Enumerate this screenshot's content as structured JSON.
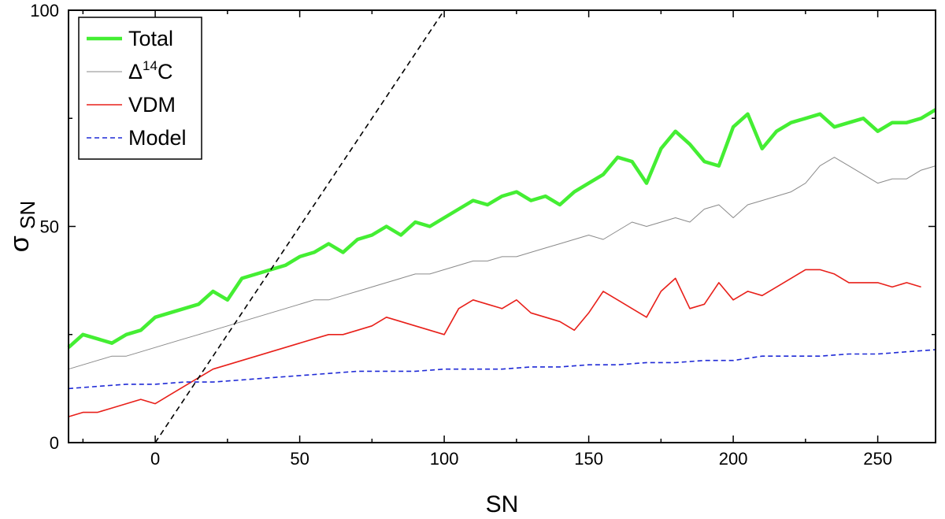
{
  "chart_data": {
    "type": "line",
    "xlabel": "SN",
    "ylabel": "σ",
    "ylabel_sub": "SN",
    "xlim": [
      -30,
      270
    ],
    "ylim": [
      0,
      100
    ],
    "xticks": [
      0,
      50,
      100,
      150,
      200,
      250
    ],
    "yticks": [
      0,
      50,
      100
    ],
    "grid": false,
    "legend_position": "top-left",
    "legend": [
      {
        "label": "Total",
        "super": "",
        "suffix": ""
      },
      {
        "label": "Δ",
        "super": "14",
        "suffix": "C"
      },
      {
        "label": "VDM",
        "super": "",
        "suffix": ""
      },
      {
        "label": "Model",
        "super": "",
        "suffix": ""
      }
    ],
    "reference_line": {
      "x": [
        0,
        100
      ],
      "y": [
        0,
        100
      ],
      "style": "dashed",
      "color": "#000000"
    },
    "series": [
      {
        "name": "Total",
        "color": "#44ee33",
        "style": "solid-thick",
        "x": [
          -30,
          -25,
          -20,
          -15,
          -10,
          -5,
          0,
          5,
          10,
          15,
          20,
          25,
          30,
          35,
          40,
          45,
          50,
          55,
          60,
          65,
          70,
          75,
          80,
          85,
          90,
          95,
          100,
          105,
          110,
          115,
          120,
          125,
          130,
          135,
          140,
          145,
          150,
          155,
          160,
          165,
          170,
          175,
          180,
          185,
          190,
          195,
          200,
          205,
          210,
          215,
          220,
          225,
          230,
          235,
          240,
          245,
          250,
          255,
          260,
          265,
          270
        ],
        "values": [
          22,
          25,
          24,
          23,
          25,
          26,
          29,
          30,
          31,
          32,
          35,
          33,
          38,
          39,
          40,
          41,
          43,
          44,
          46,
          44,
          47,
          48,
          50,
          48,
          51,
          50,
          52,
          54,
          56,
          55,
          57,
          58,
          56,
          57,
          55,
          58,
          60,
          62,
          66,
          65,
          60,
          68,
          72,
          69,
          65,
          64,
          73,
          76,
          68,
          72,
          74,
          75,
          76,
          73,
          74,
          75,
          72,
          74,
          74,
          75,
          77
        ]
      },
      {
        "name": "Δ14C",
        "color": "#8a8a8a",
        "style": "solid-thin",
        "x": [
          -30,
          -25,
          -20,
          -15,
          -10,
          -5,
          0,
          5,
          10,
          15,
          20,
          25,
          30,
          35,
          40,
          45,
          50,
          55,
          60,
          65,
          70,
          75,
          80,
          85,
          90,
          95,
          100,
          105,
          110,
          115,
          120,
          125,
          130,
          135,
          140,
          145,
          150,
          155,
          160,
          165,
          170,
          175,
          180,
          185,
          190,
          195,
          200,
          205,
          210,
          215,
          220,
          225,
          230,
          235,
          240,
          245,
          250,
          255,
          260,
          265,
          270
        ],
        "values": [
          17,
          18,
          19,
          20,
          20,
          21,
          22,
          23,
          24,
          25,
          26,
          27,
          28,
          29,
          30,
          31,
          32,
          33,
          33,
          34,
          35,
          36,
          37,
          38,
          39,
          39,
          40,
          41,
          42,
          42,
          43,
          43,
          44,
          45,
          46,
          47,
          48,
          47,
          49,
          51,
          50,
          51,
          52,
          51,
          54,
          55,
          52,
          55,
          56,
          57,
          58,
          60,
          64,
          66,
          64,
          62,
          60,
          61,
          61,
          63,
          64
        ]
      },
      {
        "name": "VDM",
        "color": "#e8201a",
        "style": "solid",
        "x": [
          -30,
          -25,
          -20,
          -15,
          -10,
          -5,
          0,
          5,
          10,
          15,
          20,
          25,
          30,
          35,
          40,
          45,
          50,
          55,
          60,
          65,
          70,
          75,
          80,
          85,
          90,
          95,
          100,
          105,
          110,
          115,
          120,
          125,
          130,
          135,
          140,
          145,
          150,
          155,
          160,
          165,
          170,
          175,
          180,
          185,
          190,
          195,
          200,
          205,
          210,
          215,
          220,
          225,
          230,
          235,
          240,
          245,
          250,
          255,
          260,
          265
        ],
        "values": [
          6,
          7,
          7,
          8,
          9,
          10,
          9,
          11,
          13,
          15,
          17,
          18,
          19,
          20,
          21,
          22,
          23,
          24,
          25,
          25,
          26,
          27,
          29,
          28,
          27,
          26,
          25,
          31,
          33,
          32,
          31,
          33,
          30,
          29,
          28,
          26,
          30,
          35,
          33,
          31,
          29,
          35,
          38,
          31,
          32,
          37,
          33,
          35,
          34,
          36,
          38,
          40,
          40,
          39,
          37,
          37,
          37,
          36,
          37,
          36
        ]
      },
      {
        "name": "Model",
        "color": "#1f2ad6",
        "style": "dashed",
        "x": [
          -30,
          -20,
          -10,
          0,
          10,
          20,
          30,
          40,
          50,
          60,
          70,
          80,
          90,
          100,
          110,
          120,
          130,
          140,
          150,
          160,
          170,
          180,
          190,
          200,
          210,
          220,
          230,
          240,
          250,
          260,
          270
        ],
        "values": [
          12.5,
          13,
          13.5,
          13.5,
          14,
          14,
          14.5,
          15,
          15.5,
          16,
          16.5,
          16.5,
          16.5,
          17,
          17,
          17,
          17.5,
          17.5,
          18,
          18,
          18.5,
          18.5,
          19,
          19,
          20,
          20,
          20,
          20.5,
          20.5,
          21,
          21.5
        ]
      }
    ]
  }
}
